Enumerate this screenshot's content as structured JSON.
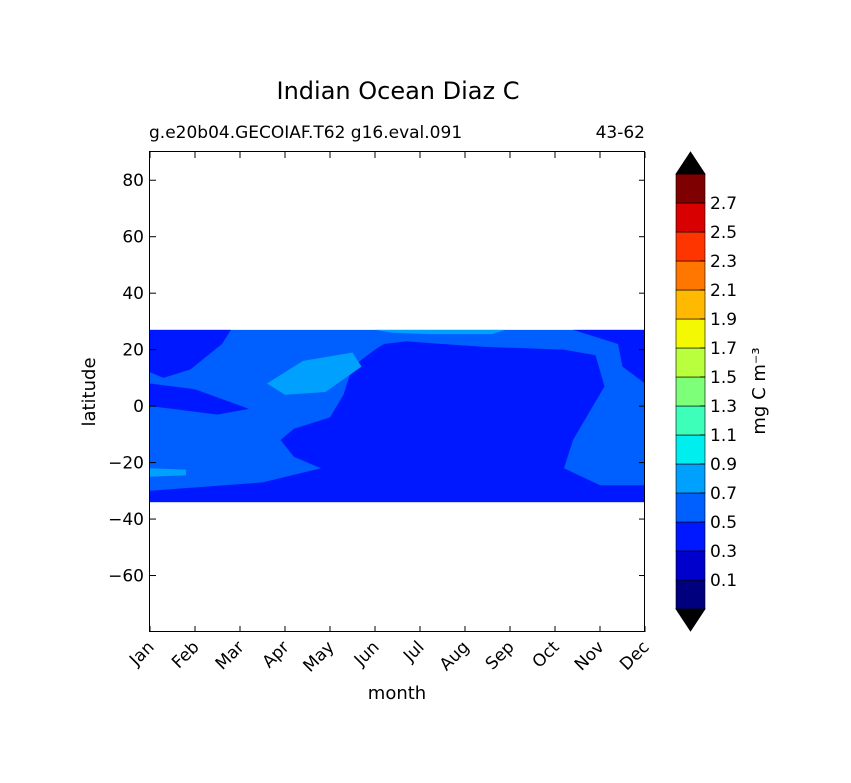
{
  "chart_data": {
    "type": "heatmap",
    "title": "Indian Ocean Diaz C",
    "subtitle_left": "g.e20b04.GECOIAF.T62 g16.eval.091",
    "subtitle_right": "43-62",
    "xlabel": "month",
    "ylabel": "latitude",
    "x_categories": [
      "Jan",
      "Feb",
      "Mar",
      "Apr",
      "May",
      "Jun",
      "Jul",
      "Aug",
      "Sep",
      "Oct",
      "Nov",
      "Dec"
    ],
    "xlim": [
      0,
      11
    ],
    "ylim": [
      -80,
      90
    ],
    "y_ticks": [
      80,
      60,
      40,
      20,
      0,
      -20,
      -40,
      -60
    ],
    "data_lat_range": [
      -34,
      27
    ],
    "colorbar": {
      "label": "mg C m⁻³",
      "levels": [
        0.0,
        0.2,
        0.4,
        0.6,
        0.8,
        1.0,
        1.2,
        1.4,
        1.6,
        1.8,
        2.0,
        2.2,
        2.4,
        2.6,
        2.8
      ],
      "tick_labels": [
        "0.1",
        "0.3",
        "0.5",
        "0.7",
        "0.9",
        "1.1",
        "1.3",
        "1.5",
        "1.7",
        "1.9",
        "2.1",
        "2.3",
        "2.5",
        "2.7"
      ],
      "colors": [
        "#00007f",
        "#0000cd",
        "#0018ff",
        "#0060ff",
        "#00a0ff",
        "#00eeee",
        "#3dffba",
        "#7dff7a",
        "#baff3d",
        "#f4f802",
        "#ffb900",
        "#ff7700",
        "#ff3500",
        "#d80000",
        "#7f0000"
      ],
      "under_color": "#000000",
      "over_color": "#000000",
      "extend": "both"
    },
    "contour_regions": [
      {
        "level": "0.3-0.5",
        "color": "#0018ff",
        "points": [
          [
            5.9,
            -34
          ],
          [
            11,
            -34
          ],
          [
            11,
            -28
          ],
          [
            10.0,
            -28
          ],
          [
            9.2,
            -22
          ],
          [
            9.4,
            -12
          ],
          [
            10.1,
            7
          ],
          [
            9.9,
            18
          ],
          [
            9.2,
            20
          ],
          [
            7.4,
            21
          ],
          [
            6.5,
            22
          ],
          [
            5.7,
            23
          ],
          [
            5.2,
            22
          ],
          [
            5.0,
            20
          ],
          [
            4.5,
            14
          ],
          [
            4.3,
            4
          ],
          [
            4.0,
            -4
          ],
          [
            3.2,
            -8
          ],
          [
            2.9,
            -12
          ],
          [
            3.2,
            -18
          ],
          [
            3.8,
            -22
          ],
          [
            2.5,
            -27
          ],
          [
            0,
            -30
          ],
          [
            0,
            -34
          ]
        ]
      },
      {
        "level": "0.3-0.5",
        "color": "#0018ff",
        "points": [
          [
            0,
            8
          ],
          [
            1.0,
            6
          ],
          [
            2.2,
            -1
          ],
          [
            1.5,
            -3
          ],
          [
            0.5,
            -1
          ],
          [
            0,
            0
          ]
        ]
      },
      {
        "level": "0.3-0.5",
        "color": "#0018ff",
        "points": [
          [
            0,
            27
          ],
          [
            1.8,
            27
          ],
          [
            1.6,
            22
          ],
          [
            0.9,
            13
          ],
          [
            0.3,
            10
          ],
          [
            0,
            12
          ]
        ]
      },
      {
        "level": "0.3-0.5",
        "color": "#0018ff",
        "points": [
          [
            9.4,
            27
          ],
          [
            11,
            27
          ],
          [
            11,
            8
          ],
          [
            10.5,
            14
          ],
          [
            10.4,
            22
          ],
          [
            9.8,
            25
          ]
        ]
      },
      {
        "level": "0.7-0.9",
        "color": "#00a0ff",
        "points": [
          [
            2.6,
            8
          ],
          [
            3.4,
            16
          ],
          [
            4.5,
            19
          ],
          [
            4.7,
            14
          ],
          [
            3.9,
            5
          ],
          [
            3.0,
            4
          ]
        ]
      },
      {
        "level": "0.7-0.9",
        "color": "#00a0ff",
        "points": [
          [
            5.0,
            27
          ],
          [
            7.9,
            27
          ],
          [
            7.6,
            25.5
          ],
          [
            6.2,
            25.5
          ],
          [
            5.4,
            26
          ]
        ]
      },
      {
        "level": "0.7-0.9",
        "color": "#00a0ff",
        "points": [
          [
            0,
            -22
          ],
          [
            0.8,
            -22.5
          ],
          [
            0.8,
            -24.5
          ],
          [
            0,
            -25
          ]
        ]
      }
    ]
  }
}
